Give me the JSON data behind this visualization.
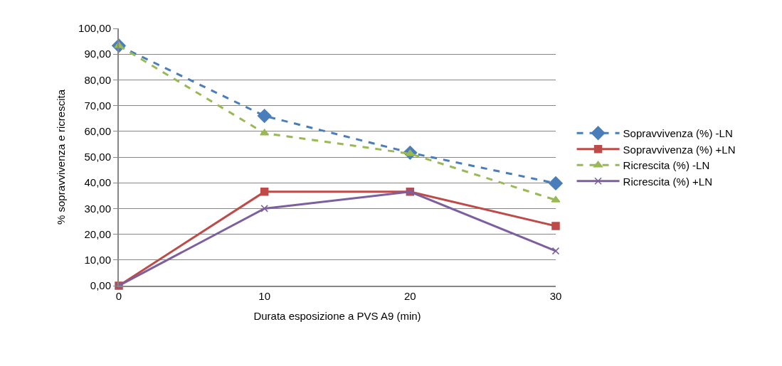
{
  "chart_data": {
    "type": "line",
    "xlabel": "Durata esposizione a PVS A9 (min)",
    "ylabel": "% sopravvivenza e ricrescita",
    "x": [
      0,
      10,
      20,
      30
    ],
    "xlim": [
      0,
      30
    ],
    "xticks": [
      0,
      10,
      20,
      30
    ],
    "ylim": [
      0,
      100
    ],
    "yticks": [
      {
        "value": 0,
        "label": "0,00"
      },
      {
        "value": 10,
        "label": "10,00"
      },
      {
        "value": 20,
        "label": "20,00"
      },
      {
        "value": 30,
        "label": "30,00"
      },
      {
        "value": 40,
        "label": "40,00"
      },
      {
        "value": 50,
        "label": "50,00"
      },
      {
        "value": 60,
        "label": "60,00"
      },
      {
        "value": 70,
        "label": "70,00"
      },
      {
        "value": 80,
        "label": "80,00"
      },
      {
        "value": 90,
        "label": "90,00"
      },
      {
        "value": 100,
        "label": "100,00"
      }
    ],
    "grid": "y",
    "legend": "right",
    "series": [
      {
        "name": "Sopravvivenza (%) -LN",
        "color": "#4a7ebb",
        "values": [
          93.3,
          66,
          51.7,
          39.8
        ],
        "marker": "diamond",
        "line_style": "dashed"
      },
      {
        "name": "Sopravvivenza (%) +LN",
        "color": "#be4b48",
        "values": [
          0,
          36.5,
          36.5,
          23.2
        ],
        "marker": "square",
        "line_style": "solid"
      },
      {
        "name": "Ricrescita (%) -LN",
        "color": "#98b954",
        "values": [
          93.3,
          59.3,
          51.3,
          33.3
        ],
        "marker": "triangle",
        "line_style": "dashed"
      },
      {
        "name": "Ricrescita (%) +LN",
        "color": "#7d5fa0",
        "values": [
          0,
          30,
          36.5,
          13.5
        ],
        "marker": "cross",
        "line_style": "solid"
      }
    ]
  }
}
